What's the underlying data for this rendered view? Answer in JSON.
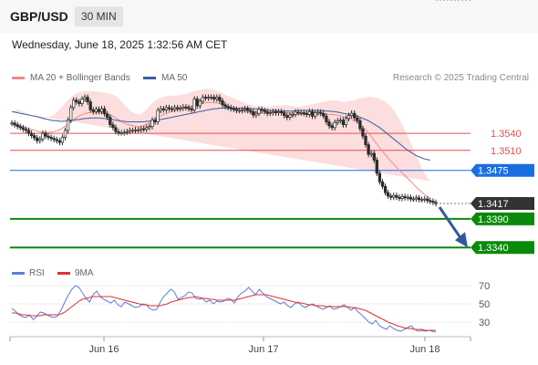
{
  "header": {
    "pair": "GBP/USD",
    "timeframe": "30 MIN",
    "datetime": "Wednesday, June 18, 2025 1:32:56 AM CET"
  },
  "legend": {
    "ma20": {
      "label": "MA 20 + Bollinger Bands",
      "color": "#f08a8a"
    },
    "ma50": {
      "label": "MA 50",
      "color": "#3a5fa0"
    },
    "credit": "Research © 2025 Trading Central"
  },
  "rsi_legend": {
    "rsi": {
      "label": "RSI",
      "color": "#5a7fd6"
    },
    "ma9": {
      "label": "9MA",
      "color": "#e03030"
    }
  },
  "colors": {
    "resistance": "#e05050",
    "pivot": "#1a6fe0",
    "support": "#0a8a0a",
    "last_price": "#333333",
    "arrow": "#2f5b9a",
    "candle": "#2a2a2a"
  },
  "chart_data": [
    {
      "type": "candlestick",
      "title": "GBP/USD 30 MIN",
      "x_ticks": [
        "Jun 16",
        "Jun 17",
        "Jun 18"
      ],
      "ylim": [
        1.331,
        1.362
      ],
      "price_levels": [
        {
          "label": "1.3540",
          "value": 1.354,
          "kind": "resistance"
        },
        {
          "label": "1.3510",
          "value": 1.351,
          "kind": "resistance"
        },
        {
          "label": "1.3475",
          "value": 1.3475,
          "kind": "pivot"
        },
        {
          "label": "1.3417",
          "value": 1.3417,
          "kind": "last"
        },
        {
          "label": "1.3390",
          "value": 1.339,
          "kind": "support"
        },
        {
          "label": "1.3340",
          "value": 1.334,
          "kind": "support"
        }
      ],
      "close": [
        1.3558,
        1.3555,
        1.3552,
        1.355,
        1.3547,
        1.3545,
        1.354,
        1.3536,
        1.3532,
        1.3527,
        1.353,
        1.354,
        1.3535,
        1.3533,
        1.3531,
        1.3529,
        1.3527,
        1.3524,
        1.3533,
        1.3545,
        1.3563,
        1.3585,
        1.3598,
        1.3595,
        1.3592,
        1.36,
        1.3603,
        1.3595,
        1.3581,
        1.3578,
        1.3582,
        1.3578,
        1.3583,
        1.3574,
        1.3568,
        1.3555,
        1.355,
        1.3543,
        1.3541,
        1.3541,
        1.3542,
        1.3543,
        1.3545,
        1.3545,
        1.3546,
        1.3546,
        1.3548,
        1.3547,
        1.355,
        1.3552,
        1.3563,
        1.356,
        1.358,
        1.3583,
        1.3581,
        1.3585,
        1.3583,
        1.3582,
        1.3585,
        1.3583,
        1.3584,
        1.3586,
        1.3585,
        1.3583,
        1.3581,
        1.36,
        1.3588,
        1.3596,
        1.3603,
        1.3602,
        1.3603,
        1.3603,
        1.36,
        1.3603,
        1.3597,
        1.359,
        1.3587,
        1.3585,
        1.3583,
        1.3582,
        1.358,
        1.358,
        1.3581,
        1.3583,
        1.358,
        1.3578,
        1.3572,
        1.3575,
        1.3582,
        1.358,
        1.3578,
        1.3575,
        1.3576,
        1.3578,
        1.3576,
        1.3578,
        1.3576,
        1.3571,
        1.3568,
        1.3572,
        1.3573,
        1.3577,
        1.3576,
        1.3576,
        1.3575,
        1.3573,
        1.3578,
        1.357,
        1.3576,
        1.3577,
        1.3575,
        1.357,
        1.356,
        1.3553,
        1.355,
        1.3559,
        1.3562,
        1.3563,
        1.3555,
        1.3566,
        1.3571,
        1.3575,
        1.3567,
        1.3562,
        1.3548,
        1.3535,
        1.352,
        1.3503,
        1.3505,
        1.3493,
        1.347,
        1.3455,
        1.3447,
        1.3436,
        1.343,
        1.3428,
        1.3431,
        1.3428,
        1.3426,
        1.3429,
        1.3427,
        1.3428,
        1.3425,
        1.3425,
        1.3427,
        1.3424,
        1.3424,
        1.3425,
        1.3422,
        1.3421,
        1.3419,
        1.3417
      ],
      "ma20_upper": [
        1.3578,
        1.358,
        1.3581,
        1.358,
        1.3578,
        1.3575,
        1.3573,
        1.3571,
        1.357,
        1.3568,
        1.3566,
        1.3565,
        1.3566,
        1.3568,
        1.357,
        1.3573,
        1.3577,
        1.3582,
        1.3587,
        1.3593,
        1.3598,
        1.3603,
        1.3607,
        1.361,
        1.3612,
        1.3613,
        1.3614,
        1.3614,
        1.3614,
        1.3614,
        1.3613,
        1.3613,
        1.3612,
        1.3611,
        1.361,
        1.3609,
        1.3608,
        1.3605,
        1.3601,
        1.3596,
        1.359,
        1.3585,
        1.358,
        1.3577,
        1.3574,
        1.3573,
        1.3574,
        1.3577,
        1.3582,
        1.3588,
        1.3593,
        1.3597,
        1.36,
        1.3602,
        1.3604,
        1.3605,
        1.3606,
        1.3606,
        1.3606,
        1.3606,
        1.3607,
        1.3608,
        1.3609,
        1.3611,
        1.3612,
        1.3614,
        1.3615,
        1.3616,
        1.3617,
        1.3618,
        1.3618,
        1.3617,
        1.3616,
        1.3614,
        1.3612,
        1.361,
        1.3607,
        1.3605,
        1.3603,
        1.3601,
        1.3599,
        1.3597,
        1.3595,
        1.3593,
        1.3591,
        1.359,
        1.3589,
        1.3588,
        1.3587,
        1.3587,
        1.3587,
        1.3587,
        1.3587,
        1.3588,
        1.3588,
        1.3589,
        1.3589,
        1.3589,
        1.3589,
        1.3588,
        1.3588,
        1.3587,
        1.3587,
        1.3587,
        1.3588,
        1.3589,
        1.359,
        1.3591,
        1.3592,
        1.3593,
        1.3594,
        1.3595,
        1.3596,
        1.3597,
        1.3598,
        1.3598,
        1.3597,
        1.3596,
        1.3595,
        1.3595,
        1.3596,
        1.3597,
        1.3598,
        1.36,
        1.3601,
        1.3602,
        1.3603,
        1.3604,
        1.3604,
        1.3603,
        1.3602,
        1.36,
        1.3598,
        1.3595,
        1.3591,
        1.3586,
        1.358,
        1.3572,
        1.3564,
        1.3555,
        1.3545,
        1.3535,
        1.3524,
        1.3512,
        1.3501,
        1.349,
        1.3479,
        1.347,
        1.3462,
        1.3456
      ],
      "ma20_lower": [
        1.353,
        1.3528,
        1.3527,
        1.3526,
        1.3525,
        1.3524,
        1.3523,
        1.3522,
        1.3521,
        1.352,
        1.3519,
        1.3518,
        1.3517,
        1.3515,
        1.3514,
        1.3513,
        1.3512,
        1.3511,
        1.3511,
        1.3512,
        1.3514,
        1.3517,
        1.3521,
        1.3525,
        1.3529,
        1.3532,
        1.3535,
        1.3537,
        1.3539,
        1.354,
        1.3541,
        1.3541,
        1.354,
        1.3539,
        1.3537,
        1.3535,
        1.3532,
        1.3529,
        1.3527,
        1.3526,
        1.3526,
        1.3527,
        1.3529,
        1.353,
        1.353,
        1.353,
        1.353,
        1.353,
        1.353,
        1.353,
        1.3531,
        1.3533,
        1.3535,
        1.3538,
        1.3541,
        1.3544,
        1.3547,
        1.355,
        1.3553,
        1.3556,
        1.3558,
        1.356,
        1.3562,
        1.3563,
        1.3564,
        1.3565,
        1.3566,
        1.3567,
        1.3568,
        1.3569,
        1.357,
        1.3571,
        1.3571,
        1.3572,
        1.3572,
        1.3571,
        1.357,
        1.3569,
        1.3568,
        1.3567,
        1.3566,
        1.3565,
        1.3565,
        1.3564,
        1.3564,
        1.3563,
        1.3563,
        1.3563,
        1.3563,
        1.3563,
        1.3564,
        1.3565,
        1.3566,
        1.3567,
        1.3567,
        1.3567,
        1.3566,
        1.3565,
        1.3564,
        1.3563,
        1.3562,
        1.3561,
        1.356,
        1.3559,
        1.3558,
        1.3557,
        1.3556,
        1.3555,
        1.3554,
        1.3553,
        1.3552,
        1.3551,
        1.355,
        1.3549,
        1.3548,
        1.3547,
        1.3546,
        1.3545,
        1.3543,
        1.354,
        1.3536,
        1.3531,
        1.3525,
        1.3518,
        1.351,
        1.35,
        1.3489,
        1.3477,
        1.3465,
        1.3452,
        1.344,
        1.3429,
        1.3419,
        1.341,
        1.3402,
        1.3396,
        1.3391,
        1.3388,
        1.3386,
        1.3386,
        1.3386,
        1.3387,
        1.3388,
        1.339,
        1.3391,
        1.3392,
        1.3394,
        1.3395,
        1.3396,
        1.3397,
        1.3398,
        1.3399
      ],
      "ma50": [
        1.3578,
        1.3577,
        1.3576,
        1.3575,
        1.3574,
        1.3573,
        1.3572,
        1.3571,
        1.357,
        1.3569,
        1.3568,
        1.3566,
        1.3565,
        1.3564,
        1.3563,
        1.3562,
        1.3562,
        1.3561,
        1.3561,
        1.3561,
        1.3562,
        1.3562,
        1.3563,
        1.3564,
        1.3564,
        1.3565,
        1.3566,
        1.3566,
        1.3567,
        1.3567,
        1.3567,
        1.3567,
        1.3566,
        1.3566,
        1.3565,
        1.3564,
        1.3564,
        1.3563,
        1.3562,
        1.3561,
        1.3561,
        1.356,
        1.356,
        1.356,
        1.356,
        1.356,
        1.356,
        1.356,
        1.3561,
        1.3561,
        1.3562,
        1.3562,
        1.3563,
        1.3564,
        1.3565,
        1.3566,
        1.3567,
        1.3568,
        1.3569,
        1.357,
        1.3571,
        1.3572,
        1.3573,
        1.3574,
        1.3575,
        1.3576,
        1.3577,
        1.3578,
        1.3579,
        1.358,
        1.3581,
        1.3582,
        1.3583,
        1.3583,
        1.3584,
        1.3584,
        1.3584,
        1.3584,
        1.3584,
        1.3584,
        1.3584,
        1.3584,
        1.3584,
        1.3584,
        1.3584,
        1.3583,
        1.3583,
        1.3583,
        1.3582,
        1.3582,
        1.3581,
        1.3581,
        1.358,
        1.358,
        1.358,
        1.3579,
        1.3579,
        1.3579,
        1.3579,
        1.3579,
        1.3579,
        1.358,
        1.358,
        1.358,
        1.358,
        1.358,
        1.358,
        1.358,
        1.358,
        1.358,
        1.358,
        1.358,
        1.3579,
        1.3579,
        1.3578,
        1.3578,
        1.3577,
        1.3576,
        1.3575,
        1.3574,
        1.3573,
        1.3572,
        1.3571,
        1.357,
        1.3568,
        1.3566,
        1.3564,
        1.3562,
        1.3559,
        1.3556,
        1.3553,
        1.355,
        1.3546,
        1.3542,
        1.3538,
        1.3534,
        1.353,
        1.3526,
        1.3522,
        1.3518,
        1.3514,
        1.351,
        1.3507,
        1.3504,
        1.3501,
        1.3499,
        1.3497,
        1.3495,
        1.3494,
        1.3493
      ]
    },
    {
      "type": "line",
      "title": "RSI",
      "ylim": [
        15,
        78
      ],
      "ticks": [
        "70",
        "50",
        "30"
      ],
      "series": [
        {
          "name": "RSI",
          "values": [
            45,
            42,
            38,
            36,
            35,
            38,
            33,
            36,
            41,
            40,
            38,
            36,
            35,
            37,
            44,
            52,
            60,
            66,
            70,
            68,
            62,
            56,
            52,
            60,
            64,
            58,
            55,
            53,
            51,
            54,
            49,
            47,
            52,
            50,
            48,
            46,
            47,
            50,
            49,
            45,
            43,
            44,
            52,
            58,
            62,
            66,
            63,
            55,
            57,
            59,
            63,
            62,
            56,
            55,
            56,
            52,
            54,
            50,
            53,
            52,
            53,
            56,
            55,
            51,
            58,
            62,
            64,
            68,
            64,
            60,
            66,
            62,
            58,
            56,
            54,
            52,
            50,
            52,
            48,
            46,
            50,
            52,
            48,
            46,
            48,
            50,
            48,
            46,
            44,
            46,
            48,
            44,
            45,
            47,
            49,
            46,
            43,
            46,
            41,
            38,
            34,
            30,
            28,
            32,
            26,
            24,
            22,
            26,
            23,
            21,
            20,
            22,
            24,
            26,
            22,
            20,
            21,
            20,
            21,
            20,
            19
          ]
        },
        {
          "name": "9MA",
          "values": [
            40,
            40,
            39,
            38,
            38,
            37,
            37,
            37,
            37,
            38,
            38,
            38,
            38,
            38,
            39,
            41,
            44,
            47,
            50,
            53,
            55,
            56,
            57,
            58,
            58,
            58,
            58,
            58,
            58,
            57,
            56,
            55,
            54,
            53,
            52,
            51,
            50,
            49,
            49,
            48,
            48,
            48,
            48,
            49,
            50,
            52,
            53,
            54,
            55,
            56,
            57,
            57,
            58,
            57,
            56,
            56,
            55,
            55,
            54,
            54,
            54,
            54,
            54,
            54,
            55,
            56,
            57,
            58,
            59,
            60,
            60,
            60,
            60,
            59,
            58,
            57,
            56,
            55,
            54,
            53,
            52,
            51,
            51,
            50,
            49,
            49,
            48,
            48,
            48,
            47,
            47,
            47,
            47,
            47,
            47,
            47,
            46,
            46,
            45,
            44,
            43,
            41,
            39,
            37,
            35,
            33,
            31,
            29,
            28,
            26,
            25,
            24,
            23,
            23,
            22,
            22,
            22,
            21,
            21,
            21,
            21
          ]
        }
      ]
    }
  ]
}
